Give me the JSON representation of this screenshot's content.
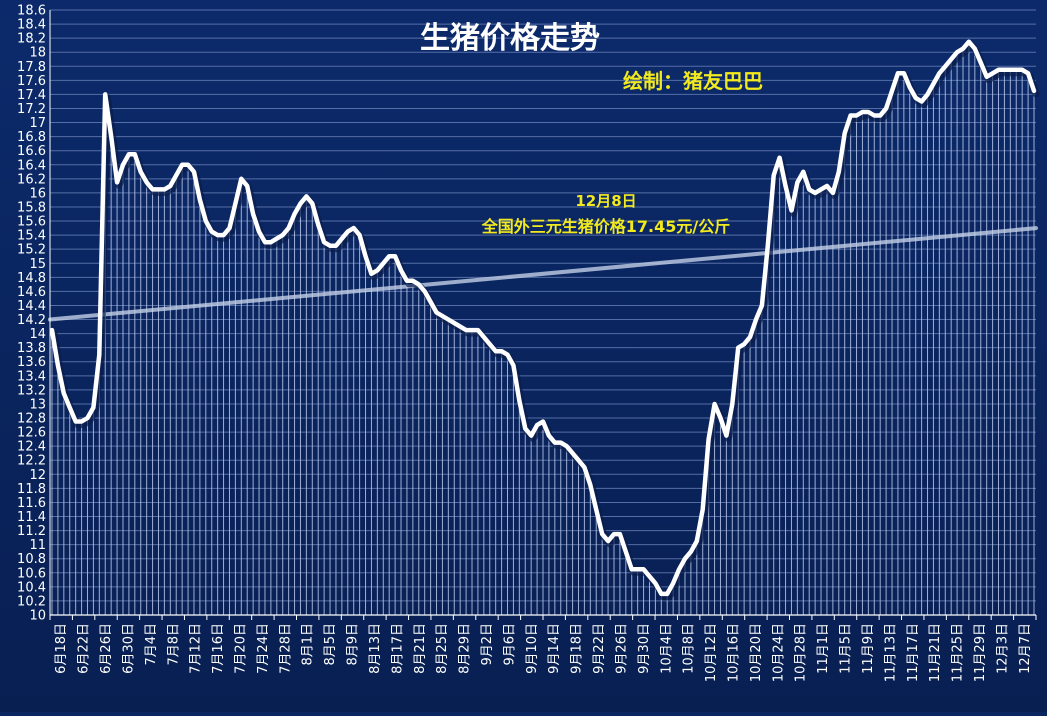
{
  "chart_data": {
    "type": "line",
    "title": "生猪价格走势",
    "credit": "绘制：猪友巴巴",
    "annotation": {
      "line1": "12月8日",
      "line2": "全国外三元生猪价格17.45元/公斤"
    },
    "ylim": [
      10,
      18.6
    ],
    "ytick_step": 0.2,
    "x_labels": [
      "6月18日",
      "6月22日",
      "6月26日",
      "6月30日",
      "7月4日",
      "7月8日",
      "7月12日",
      "7月16日",
      "7月20日",
      "7月24日",
      "7月28日",
      "8月1日",
      "8月5日",
      "8月9日",
      "8月13日",
      "8月17日",
      "8月21日",
      "8月25日",
      "8月29日",
      "9月2日",
      "9月6日",
      "9月10日",
      "9月14日",
      "9月18日",
      "9月22日",
      "9月26日",
      "9月30日",
      "10月4日",
      "10月8日",
      "10月12日",
      "10月16日",
      "10月20日",
      "10月24日",
      "10月28日",
      "11月1日",
      "11月5日",
      "11月9日",
      "11月13日",
      "11月17日",
      "11月21日",
      "11月25日",
      "11月29日",
      "12月3日",
      "12月7日"
    ],
    "series": [
      {
        "values": [
          14.05,
          13.55,
          13.15,
          12.95,
          12.75,
          12.75,
          12.8,
          12.95,
          13.7,
          17.4,
          16.8,
          16.15,
          16.4,
          16.55,
          16.55,
          16.3,
          16.15,
          16.05,
          16.05,
          16.05,
          16.1,
          16.25,
          16.4,
          16.4,
          16.3,
          15.9,
          15.6,
          15.45,
          15.4,
          15.4,
          15.5,
          15.85,
          16.2,
          16.1,
          15.7,
          15.45,
          15.3,
          15.3,
          15.35,
          15.4,
          15.5,
          15.7,
          15.85,
          15.95,
          15.85,
          15.55,
          15.3,
          15.25,
          15.25,
          15.35,
          15.45,
          15.5,
          15.4,
          15.1,
          14.85,
          14.9,
          15.0,
          15.1,
          15.1,
          14.9,
          14.75,
          14.75,
          14.7,
          14.6,
          14.45,
          14.3,
          14.25,
          14.2,
          14.15,
          14.1,
          14.05,
          14.05,
          14.05,
          13.95,
          13.85,
          13.75,
          13.75,
          13.7,
          13.55,
          13.05,
          12.65,
          12.55,
          12.7,
          12.75,
          12.55,
          12.45,
          12.45,
          12.4,
          12.3,
          12.2,
          12.1,
          11.85,
          11.5,
          11.15,
          11.05,
          11.15,
          11.15,
          10.9,
          10.65,
          10.65,
          10.65,
          10.55,
          10.45,
          10.3,
          10.3,
          10.45,
          10.65,
          10.8,
          10.9,
          11.05,
          11.5,
          12.5,
          13.0,
          12.8,
          12.55,
          13.0,
          13.8,
          13.85,
          13.95,
          14.2,
          14.4,
          15.25,
          16.25,
          16.5,
          16.1,
          15.75,
          16.15,
          16.3,
          16.05,
          16.0,
          16.05,
          16.1,
          16.0,
          16.3,
          16.85,
          17.1,
          17.1,
          17.15,
          17.15,
          17.1,
          17.1,
          17.2,
          17.45,
          17.7,
          17.7,
          17.5,
          17.35,
          17.3,
          17.4,
          17.55,
          17.7,
          17.8,
          17.9,
          18.0,
          18.05,
          18.15,
          18.05,
          17.85,
          17.65,
          17.7,
          17.75,
          17.75,
          17.75,
          17.75,
          17.75,
          17.7,
          17.45
        ]
      }
    ],
    "trendline": {
      "start": 14.2,
      "end": 15.5
    }
  }
}
